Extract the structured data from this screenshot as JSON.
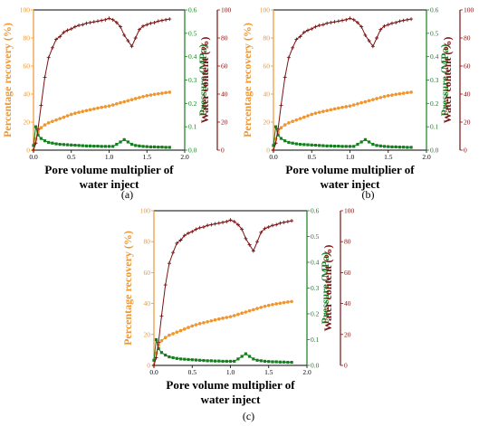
{
  "colors": {
    "recovery": "#f0962e",
    "pressure": "#157f1f",
    "water": "#7b1313",
    "axis": "#000000"
  },
  "chart_data": [
    {
      "panel": "(a)",
      "type": "line",
      "xlabel": "Pore volume multiplier of water inject",
      "ylabel_left": "Percentage recovery (%)",
      "ylabel_pressure": "Pressure (MPa)",
      "ylabel_water": "Water content (%)",
      "xlim": [
        0,
        2.0
      ],
      "x_ticks": [
        "0.0",
        "0.5",
        "1.0",
        "1.5",
        "2.0"
      ],
      "ylim_left": [
        0,
        100
      ],
      "left_ticks": [
        "0",
        "20",
        "40",
        "60",
        "80",
        "100"
      ],
      "ylim_pressure": [
        0,
        0.6
      ],
      "pressure_ticks": [
        "0.0",
        "0.1",
        "0.2",
        "0.3",
        "0.4",
        "0.5",
        "0.6"
      ],
      "ylim_water": [
        0,
        100
      ],
      "water_ticks": [
        "0",
        "20",
        "40",
        "60",
        "80",
        "100"
      ],
      "series": [
        {
          "key": "recovery",
          "axis": "left",
          "marker": "circle",
          "x": [
            0.0,
            0.03,
            0.06,
            0.1,
            0.15,
            0.2,
            0.25,
            0.3,
            0.35,
            0.4,
            0.45,
            0.5,
            0.55,
            0.6,
            0.65,
            0.7,
            0.75,
            0.8,
            0.85,
            0.9,
            0.95,
            1.0,
            1.05,
            1.1,
            1.15,
            1.2,
            1.25,
            1.3,
            1.35,
            1.4,
            1.45,
            1.5,
            1.55,
            1.6,
            1.65,
            1.7,
            1.75,
            1.8
          ],
          "y": [
            0,
            8,
            13,
            16,
            18,
            19.5,
            20.5,
            21.5,
            22.5,
            23.5,
            24.5,
            25.5,
            26.3,
            27,
            27.6,
            28.2,
            28.8,
            29.4,
            30,
            30.5,
            31,
            31.5,
            32.2,
            33,
            33.8,
            34.5,
            35.3,
            36,
            36.8,
            37.5,
            38.2,
            38.8,
            39.3,
            39.8,
            40.2,
            40.6,
            41,
            41.3
          ]
        },
        {
          "key": "pressure",
          "axis": "pressure",
          "marker": "square",
          "x": [
            0.0,
            0.03,
            0.06,
            0.1,
            0.15,
            0.2,
            0.25,
            0.3,
            0.35,
            0.4,
            0.45,
            0.5,
            0.55,
            0.6,
            0.65,
            0.7,
            0.75,
            0.8,
            0.85,
            0.9,
            0.95,
            1.0,
            1.05,
            1.1,
            1.15,
            1.2,
            1.25,
            1.3,
            1.35,
            1.4,
            1.45,
            1.5,
            1.55,
            1.6,
            1.65,
            1.7,
            1.75,
            1.8
          ],
          "y": [
            0.02,
            0.1,
            0.065,
            0.05,
            0.04,
            0.033,
            0.03,
            0.027,
            0.025,
            0.024,
            0.023,
            0.022,
            0.021,
            0.02,
            0.019,
            0.018,
            0.018,
            0.017,
            0.017,
            0.016,
            0.016,
            0.016,
            0.016,
            0.025,
            0.035,
            0.045,
            0.035,
            0.025,
            0.02,
            0.018,
            0.016,
            0.015,
            0.014,
            0.014,
            0.013,
            0.013,
            0.012,
            0.012
          ]
        },
        {
          "key": "water",
          "axis": "water",
          "marker": "plus",
          "x": [
            0.0,
            0.03,
            0.06,
            0.1,
            0.15,
            0.2,
            0.25,
            0.3,
            0.35,
            0.4,
            0.45,
            0.5,
            0.55,
            0.6,
            0.65,
            0.7,
            0.75,
            0.8,
            0.85,
            0.9,
            0.95,
            1.0,
            1.05,
            1.1,
            1.15,
            1.2,
            1.25,
            1.3,
            1.35,
            1.4,
            1.45,
            1.5,
            1.55,
            1.6,
            1.65,
            1.7,
            1.75,
            1.8
          ],
          "y": [
            0,
            5,
            15,
            32,
            52,
            66,
            73,
            79,
            81,
            84,
            85.5,
            86.5,
            88,
            89,
            89.5,
            90.5,
            91,
            91.5,
            92,
            92.5,
            93,
            94,
            93,
            91,
            88,
            82,
            78,
            74,
            80,
            86,
            88.5,
            89.5,
            90.5,
            91,
            92,
            92.5,
            93,
            93.5
          ]
        }
      ]
    },
    {
      "panel": "(b)",
      "type": "line",
      "xlabel": "Pore volume multiplier of water inject",
      "ylabel_left": "Percentage recovery (%)",
      "ylabel_pressure": "Pressure (MPa)",
      "ylabel_water": "Water content (%)",
      "xlim": [
        0,
        2.0
      ],
      "x_ticks": [
        "0.0",
        "0.5",
        "1.0",
        "1.5",
        "2.0"
      ],
      "ylim_left": [
        0,
        100
      ],
      "left_ticks": [
        "0",
        "20",
        "40",
        "60",
        "80",
        "100"
      ],
      "ylim_pressure": [
        0,
        0.6
      ],
      "pressure_ticks": [
        "0.0",
        "0.1",
        "0.2",
        "0.3",
        "0.4",
        "0.5",
        "0.6"
      ],
      "ylim_water": [
        0,
        100
      ],
      "water_ticks": [
        "0",
        "20",
        "40",
        "60",
        "80",
        "100"
      ],
      "series": [
        {
          "key": "recovery",
          "axis": "left",
          "marker": "circle",
          "x": [
            0.0,
            0.03,
            0.06,
            0.1,
            0.15,
            0.2,
            0.25,
            0.3,
            0.35,
            0.4,
            0.45,
            0.5,
            0.55,
            0.6,
            0.65,
            0.7,
            0.75,
            0.8,
            0.85,
            0.9,
            0.95,
            1.0,
            1.05,
            1.1,
            1.15,
            1.2,
            1.25,
            1.3,
            1.35,
            1.4,
            1.45,
            1.5,
            1.55,
            1.6,
            1.65,
            1.7,
            1.75,
            1.8
          ],
          "y": [
            0,
            8,
            13,
            16,
            18,
            19.5,
            20.5,
            21.5,
            22.5,
            23.5,
            24.5,
            25.5,
            26.3,
            27,
            27.6,
            28.2,
            28.8,
            29.4,
            30,
            30.5,
            31,
            31.5,
            32.2,
            33,
            33.8,
            34.5,
            35.3,
            36,
            36.8,
            37.5,
            38.2,
            38.8,
            39.3,
            39.8,
            40.2,
            40.6,
            41,
            41.3
          ]
        },
        {
          "key": "pressure",
          "axis": "pressure",
          "marker": "square",
          "x": [
            0.0,
            0.03,
            0.06,
            0.1,
            0.15,
            0.2,
            0.25,
            0.3,
            0.35,
            0.4,
            0.45,
            0.5,
            0.55,
            0.6,
            0.65,
            0.7,
            0.75,
            0.8,
            0.85,
            0.9,
            0.95,
            1.0,
            1.05,
            1.1,
            1.15,
            1.2,
            1.25,
            1.3,
            1.35,
            1.4,
            1.45,
            1.5,
            1.55,
            1.6,
            1.65,
            1.7,
            1.75,
            1.8
          ],
          "y": [
            0.02,
            0.1,
            0.065,
            0.05,
            0.04,
            0.033,
            0.03,
            0.027,
            0.025,
            0.024,
            0.023,
            0.022,
            0.021,
            0.02,
            0.019,
            0.018,
            0.018,
            0.017,
            0.017,
            0.016,
            0.016,
            0.016,
            0.016,
            0.025,
            0.035,
            0.045,
            0.035,
            0.025,
            0.02,
            0.018,
            0.016,
            0.015,
            0.014,
            0.014,
            0.013,
            0.013,
            0.012,
            0.012
          ]
        },
        {
          "key": "water",
          "axis": "water",
          "marker": "plus",
          "x": [
            0.0,
            0.03,
            0.06,
            0.1,
            0.15,
            0.2,
            0.25,
            0.3,
            0.35,
            0.4,
            0.45,
            0.5,
            0.55,
            0.6,
            0.65,
            0.7,
            0.75,
            0.8,
            0.85,
            0.9,
            0.95,
            1.0,
            1.05,
            1.1,
            1.15,
            1.2,
            1.25,
            1.3,
            1.35,
            1.4,
            1.45,
            1.5,
            1.55,
            1.6,
            1.65,
            1.7,
            1.75,
            1.8
          ],
          "y": [
            0,
            5,
            15,
            32,
            52,
            66,
            73,
            79,
            81,
            84,
            85.5,
            86.5,
            88,
            89,
            89.5,
            90.5,
            91,
            91.5,
            92,
            92.5,
            93,
            94,
            93,
            91,
            88,
            82,
            78,
            74,
            80,
            86,
            88.5,
            89.5,
            90.5,
            91,
            92,
            92.5,
            93,
            93.5
          ]
        }
      ]
    },
    {
      "panel": "(c)",
      "type": "line",
      "xlabel": "Pore volume multiplier of water inject",
      "ylabel_left": "Percentage recovery (%)",
      "ylabel_pressure": "Pressure (MPa)",
      "ylabel_water": "Water content (%)",
      "xlim": [
        0,
        2.0
      ],
      "x_ticks": [
        "0.0",
        "0.5",
        "1.0",
        "1.5",
        "2.0"
      ],
      "ylim_left": [
        0,
        100
      ],
      "left_ticks": [
        "0",
        "20",
        "40",
        "60",
        "80",
        "100"
      ],
      "ylim_pressure": [
        0,
        0.6
      ],
      "pressure_ticks": [
        "0.0",
        "0.1",
        "0.2",
        "0.3",
        "0.4",
        "0.5",
        "0.6"
      ],
      "ylim_water": [
        0,
        100
      ],
      "water_ticks": [
        "0",
        "20",
        "40",
        "60",
        "80",
        "100"
      ],
      "series": [
        {
          "key": "recovery",
          "axis": "left",
          "marker": "circle",
          "x": [
            0.0,
            0.03,
            0.06,
            0.1,
            0.15,
            0.2,
            0.25,
            0.3,
            0.35,
            0.4,
            0.45,
            0.5,
            0.55,
            0.6,
            0.65,
            0.7,
            0.75,
            0.8,
            0.85,
            0.9,
            0.95,
            1.0,
            1.05,
            1.1,
            1.15,
            1.2,
            1.25,
            1.3,
            1.35,
            1.4,
            1.45,
            1.5,
            1.55,
            1.6,
            1.65,
            1.7,
            1.75,
            1.8
          ],
          "y": [
            0,
            8,
            13,
            16,
            18,
            19.5,
            20.5,
            21.5,
            22.5,
            23.5,
            24.5,
            25.5,
            26.3,
            27,
            27.6,
            28.2,
            28.8,
            29.4,
            30,
            30.5,
            31,
            31.5,
            32.2,
            33,
            33.8,
            34.5,
            35.3,
            36,
            36.8,
            37.5,
            38.2,
            38.8,
            39.3,
            39.8,
            40.2,
            40.6,
            41,
            41.3
          ]
        },
        {
          "key": "pressure",
          "axis": "pressure",
          "marker": "square",
          "x": [
            0.0,
            0.03,
            0.06,
            0.1,
            0.15,
            0.2,
            0.25,
            0.3,
            0.35,
            0.4,
            0.45,
            0.5,
            0.55,
            0.6,
            0.65,
            0.7,
            0.75,
            0.8,
            0.85,
            0.9,
            0.95,
            1.0,
            1.05,
            1.1,
            1.15,
            1.2,
            1.25,
            1.3,
            1.35,
            1.4,
            1.45,
            1.5,
            1.55,
            1.6,
            1.65,
            1.7,
            1.75,
            1.8
          ],
          "y": [
            0.02,
            0.1,
            0.065,
            0.05,
            0.04,
            0.033,
            0.03,
            0.027,
            0.025,
            0.024,
            0.023,
            0.022,
            0.021,
            0.02,
            0.019,
            0.018,
            0.018,
            0.017,
            0.017,
            0.016,
            0.016,
            0.016,
            0.016,
            0.025,
            0.035,
            0.045,
            0.035,
            0.025,
            0.02,
            0.018,
            0.016,
            0.015,
            0.014,
            0.014,
            0.013,
            0.013,
            0.012,
            0.012
          ]
        },
        {
          "key": "water",
          "axis": "water",
          "marker": "plus",
          "x": [
            0.0,
            0.03,
            0.06,
            0.1,
            0.15,
            0.2,
            0.25,
            0.3,
            0.35,
            0.4,
            0.45,
            0.5,
            0.55,
            0.6,
            0.65,
            0.7,
            0.75,
            0.8,
            0.85,
            0.9,
            0.95,
            1.0,
            1.05,
            1.1,
            1.15,
            1.2,
            1.25,
            1.3,
            1.35,
            1.4,
            1.45,
            1.5,
            1.55,
            1.6,
            1.65,
            1.7,
            1.75,
            1.8
          ],
          "y": [
            0,
            5,
            15,
            32,
            52,
            66,
            73,
            79,
            81,
            84,
            85.5,
            86.5,
            88,
            89,
            89.5,
            90.5,
            91,
            91.5,
            92,
            92.5,
            93,
            94,
            93,
            91,
            88,
            82,
            78,
            74,
            80,
            86,
            88.5,
            89.5,
            90.5,
            91,
            92,
            92.5,
            93,
            93.5
          ]
        }
      ]
    }
  ]
}
